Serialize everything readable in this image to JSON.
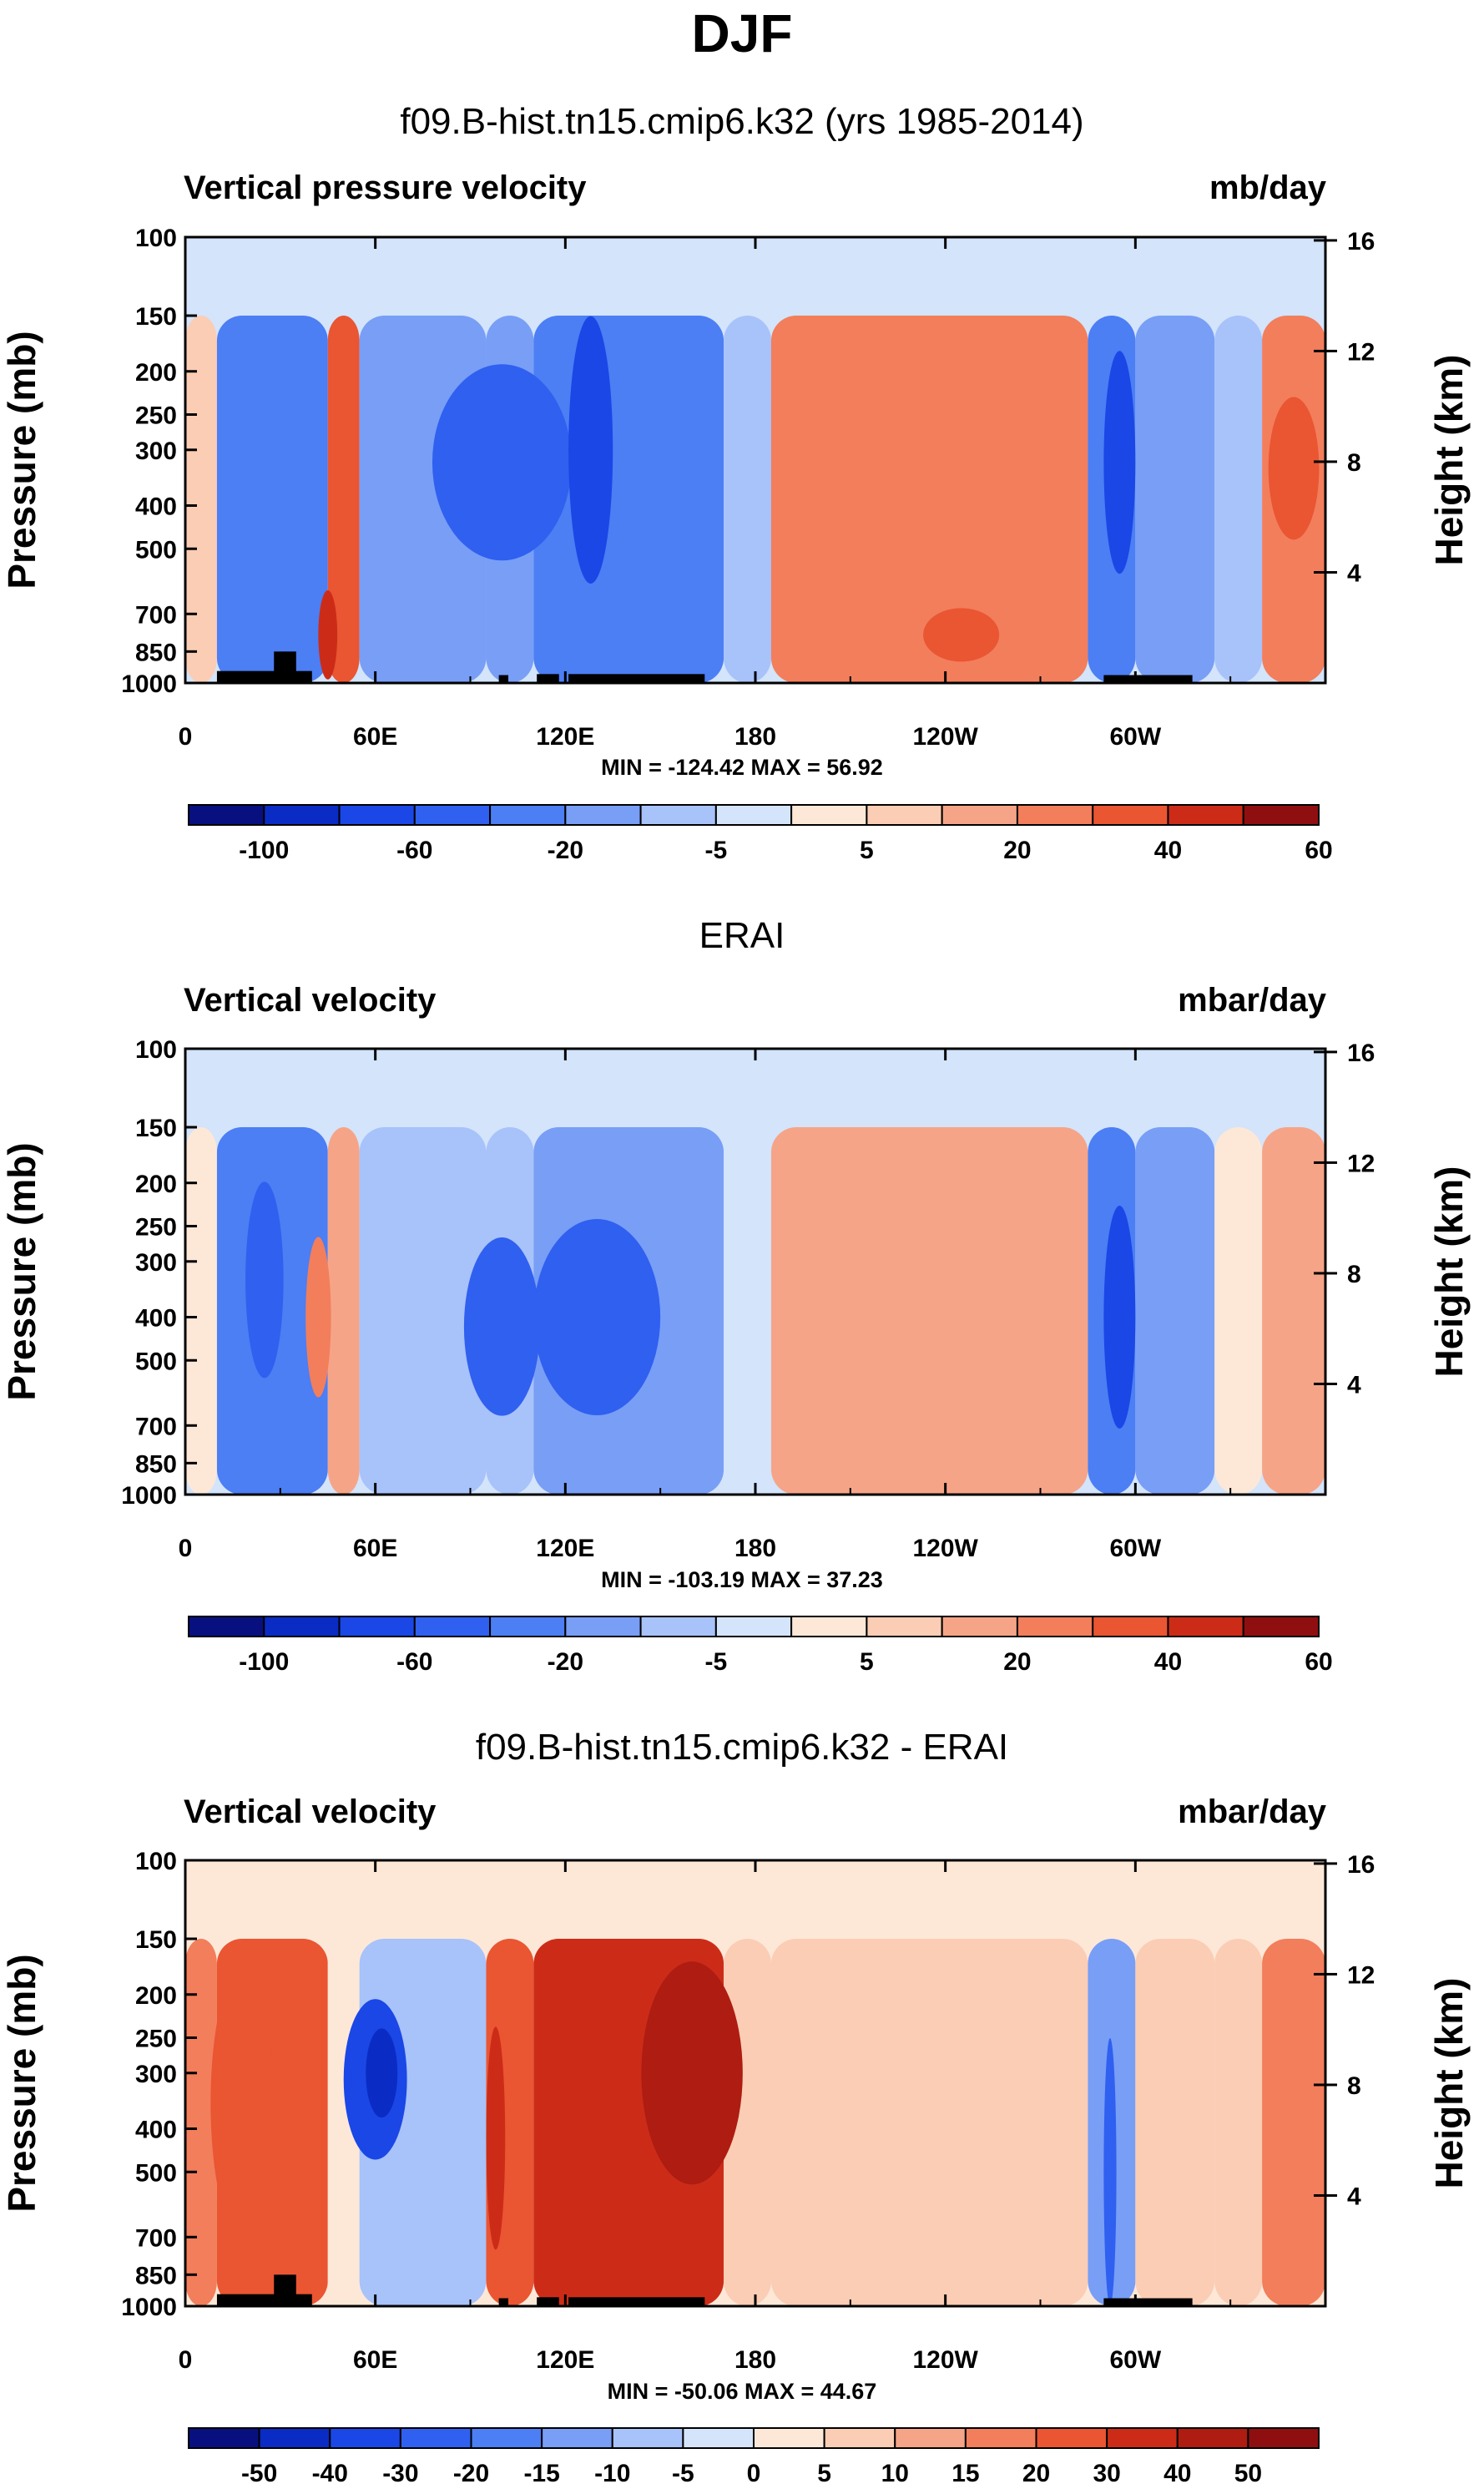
{
  "main_title": "DJF",
  "colors": {
    "omega_levels": [
      "#08107f",
      "#0a2cc4",
      "#1a47e6",
      "#2f60f0",
      "#4c7ef4",
      "#789ef6",
      "#a8c2fa",
      "#d3e4fb",
      "#fde8d8",
      "#fbcdb4",
      "#f6a487",
      "#f27e5c",
      "#ea5532",
      "#cc2c17",
      "#8f0f10"
    ],
    "diff_levels": [
      "#08107f",
      "#0a2cc4",
      "#1a47e6",
      "#2f60f0",
      "#4c7ef4",
      "#789ef6",
      "#a8c2fa",
      "#d3e4fb",
      "#fde8d8",
      "#fbcdb4",
      "#f6a487",
      "#f27e5c",
      "#ea5532",
      "#cc2c17",
      "#ae1c12",
      "#8f0f10"
    ],
    "land": "#000000"
  },
  "chart_data": [
    {
      "type": "heatmap",
      "title": "f09.B-hist.tn15.cmip6.k32 (yrs 1985-2014)",
      "variable_label": "Vertical pressure velocity",
      "units": "mb/day",
      "ylabel": "Pressure (mb)",
      "y2label": "Height (km)",
      "x_ticks": [
        "0",
        "60E",
        "120E",
        "180",
        "120W",
        "60W"
      ],
      "y_ticks": [
        "100",
        "150",
        "200",
        "250",
        "300",
        "400",
        "500",
        "700",
        "850",
        "1000"
      ],
      "y2_ticks": [
        "16",
        "12",
        "8",
        "4"
      ],
      "min_max_text": "MIN = -124.42  MAX = 56.92",
      "colorbar_labels": [
        "-100",
        "-60",
        "-20",
        "-5",
        "5",
        "20",
        "40",
        "60"
      ],
      "min": -124.42,
      "max": 56.92
    },
    {
      "type": "heatmap",
      "title": "ERAI",
      "variable_label": "Vertical velocity",
      "units": "mbar/day",
      "ylabel": "Pressure (mb)",
      "y2label": "Height (km)",
      "x_ticks": [
        "0",
        "60E",
        "120E",
        "180",
        "120W",
        "60W"
      ],
      "y_ticks": [
        "100",
        "150",
        "200",
        "250",
        "300",
        "400",
        "500",
        "700",
        "850",
        "1000"
      ],
      "y2_ticks": [
        "16",
        "12",
        "8",
        "4"
      ],
      "min_max_text": "MIN = -103.19  MAX =  37.23",
      "colorbar_labels": [
        "-100",
        "-60",
        "-20",
        "-5",
        "5",
        "20",
        "40",
        "60"
      ],
      "min": -103.19,
      "max": 37.23
    },
    {
      "type": "heatmap",
      "title": "f09.B-hist.tn15.cmip6.k32 - ERAI",
      "variable_label": "Vertical velocity",
      "units": "mbar/day",
      "ylabel": "Pressure (mb)",
      "y2label": "Height (km)",
      "x_ticks": [
        "0",
        "60E",
        "120E",
        "180",
        "120W",
        "60W"
      ],
      "y_ticks": [
        "100",
        "150",
        "200",
        "250",
        "300",
        "400",
        "500",
        "700",
        "850",
        "1000"
      ],
      "y2_ticks": [
        "16",
        "12",
        "8",
        "4"
      ],
      "min_max_text": "MIN = -50.06  MAX = 44.67",
      "colorbar_labels": [
        "-50",
        "-40",
        "-30",
        "-20",
        "-15",
        "-10",
        "-5",
        "0",
        "5",
        "10",
        "15",
        "20",
        "30",
        "40",
        "50"
      ],
      "min": -50.06,
      "max": 44.67
    }
  ]
}
